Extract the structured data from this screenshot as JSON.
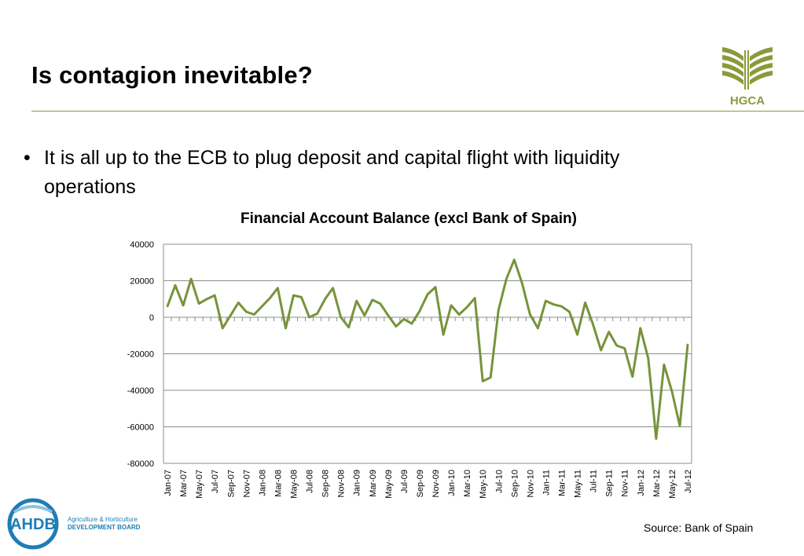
{
  "slide": {
    "title": "Is contagion inevitable?",
    "bullet": "It is all up to the ECB to plug deposit and capital flight with liquidity operations",
    "source": "Source: Bank of Spain"
  },
  "logos": {
    "hgca": "HGCA",
    "ahdb": "AHDB",
    "ahdb_line1": "Agriculture & Horticulture",
    "ahdb_line2": "DEVELOPMENT BOARD"
  },
  "colors": {
    "accent": "#8a9a3c",
    "line": "#77933c",
    "ahdb_blue": "#1f7db5"
  },
  "chart_data": {
    "type": "line",
    "title": "Financial Account Balance (excl Bank of Spain)",
    "ylim": [
      -80000,
      40000
    ],
    "yticks": [
      40000,
      20000,
      0,
      -20000,
      -40000,
      -60000,
      -80000
    ],
    "grid": true,
    "tick_labels": [
      "Jan-07",
      "Mar-07",
      "May-07",
      "Jul-07",
      "Sep-07",
      "Nov-07",
      "Jan-08",
      "Mar-08",
      "May-08",
      "Jul-08",
      "Sep-08",
      "Nov-08",
      "Jan-09",
      "Mar-09",
      "May-09",
      "Jul-09",
      "Sep-09",
      "Nov-09",
      "Jan-10",
      "Mar-10",
      "May-10",
      "Jul-10",
      "Sep-10",
      "Nov-10",
      "Jan-11",
      "Mar-11",
      "May-11",
      "Jul-11",
      "Sep-11",
      "Nov-11",
      "Jan-12",
      "Mar-12",
      "May-12",
      "Jul-12"
    ],
    "series": [
      {
        "values": [
          6000,
          17500,
          6500,
          21000,
          7500,
          10000,
          12000,
          -6000,
          1000,
          8000,
          3000,
          1500,
          6000,
          10500,
          16000,
          -6000,
          12000,
          11000,
          0,
          2000,
          10000,
          16000,
          0,
          -5500,
          9000,
          1000,
          9500,
          7500,
          1000,
          -5000,
          -1000,
          -3500,
          3500,
          12500,
          16500,
          -9500,
          6500,
          1500,
          5500,
          10500,
          -35000,
          -33000,
          4000,
          21000,
          31500,
          18500,
          1500,
          -6000,
          9000,
          7000,
          6000,
          3000,
          -9500,
          8000,
          -4000,
          -18000,
          -8000,
          -15500,
          -17000,
          -32500,
          -6000,
          -22500,
          -66500,
          -26000,
          -40500,
          -59500,
          -15000
        ]
      }
    ]
  }
}
